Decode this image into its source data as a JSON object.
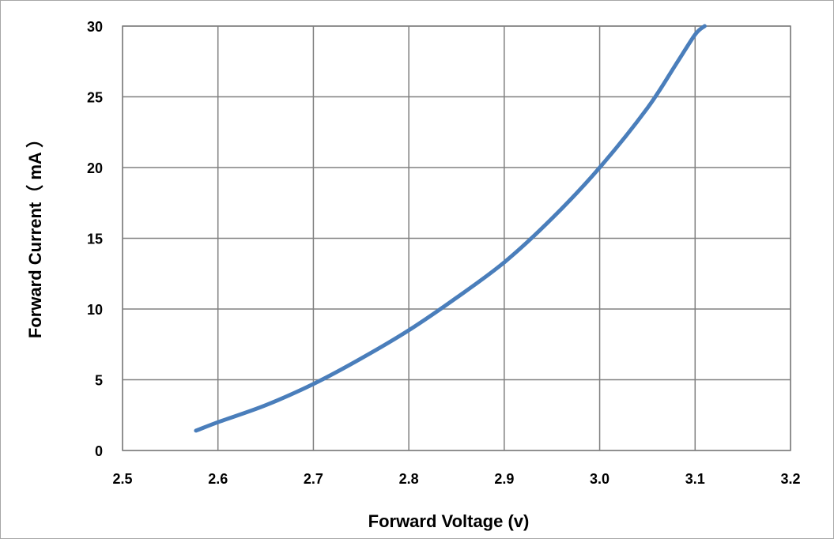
{
  "chart_data": {
    "type": "line",
    "title": "",
    "xlabel": "Forward Voltage (v)",
    "ylabel": "Forward Current（ mA ）",
    "xlim": [
      2.5,
      3.2
    ],
    "ylim": [
      0,
      30
    ],
    "x_ticks": [
      "2.5",
      "2.6",
      "2.7",
      "2.8",
      "2.9",
      "3.0",
      "3.1",
      "3.2"
    ],
    "y_ticks": [
      "0",
      "5",
      "10",
      "15",
      "20",
      "25",
      "30"
    ],
    "grid": true,
    "legend": "none",
    "series": [
      {
        "color": "#4a7ebb",
        "x": [
          2.577,
          2.6,
          2.65,
          2.7,
          2.75,
          2.8,
          2.85,
          2.9,
          2.95,
          3.0,
          3.05,
          3.08,
          3.1,
          3.11
        ],
        "y": [
          1.4,
          2.0,
          3.2,
          4.7,
          6.5,
          8.5,
          10.8,
          13.3,
          16.4,
          20.0,
          24.2,
          27.3,
          29.4,
          30.0
        ]
      }
    ]
  }
}
